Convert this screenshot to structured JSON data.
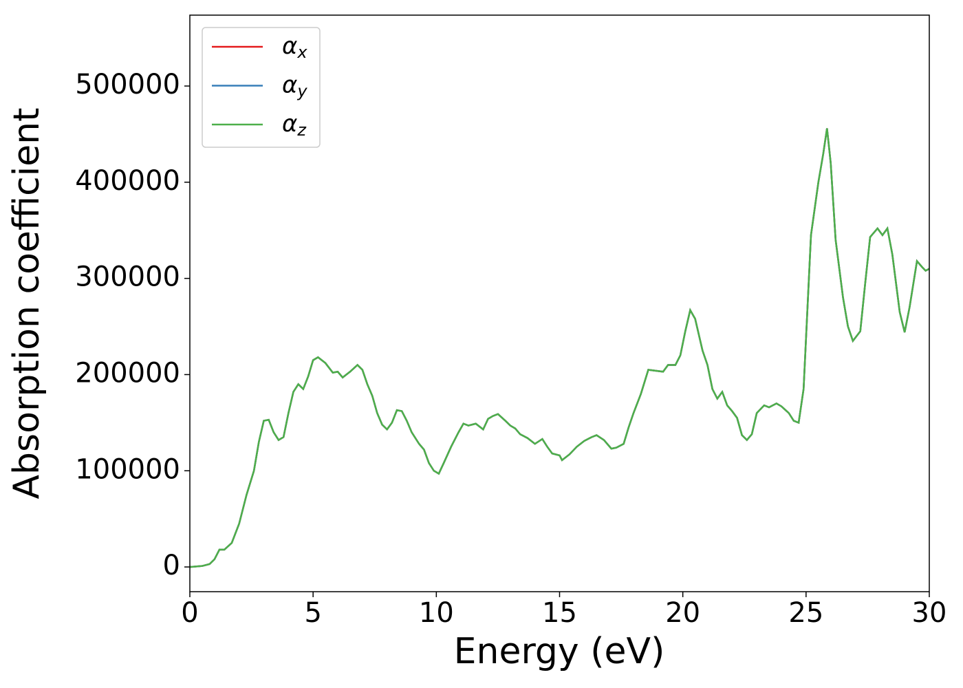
{
  "chart_data": {
    "type": "line",
    "xlabel": "Energy (eV)",
    "ylabel": "Absorption coefficient",
    "x": [
      0,
      0.5,
      0.8,
      1.0,
      1.2,
      1.4,
      1.7,
      2.0,
      2.3,
      2.6,
      2.8,
      3.0,
      3.2,
      3.4,
      3.6,
      3.8,
      4.0,
      4.2,
      4.4,
      4.6,
      4.8,
      5.0,
      5.2,
      5.5,
      5.8,
      6.0,
      6.2,
      6.5,
      6.8,
      7.0,
      7.2,
      7.4,
      7.6,
      7.8,
      8.0,
      8.2,
      8.4,
      8.6,
      8.8,
      9.0,
      9.3,
      9.5,
      9.7,
      9.9,
      10.1,
      10.3,
      10.6,
      10.9,
      11.1,
      11.3,
      11.6,
      11.9,
      12.1,
      12.3,
      12.5,
      12.8,
      13.0,
      13.2,
      13.4,
      13.7,
      14.0,
      14.3,
      14.5,
      14.7,
      15.0,
      15.1,
      15.4,
      15.7,
      16.0,
      16.3,
      16.5,
      16.8,
      17.1,
      17.3,
      17.6,
      17.8,
      18.0,
      18.3,
      18.6,
      18.9,
      19.2,
      19.4,
      19.7,
      19.9,
      20.1,
      20.3,
      20.5,
      20.8,
      21.0,
      21.2,
      21.4,
      21.6,
      21.8,
      22.0,
      22.2,
      22.4,
      22.6,
      22.8,
      23.0,
      23.3,
      23.5,
      23.8,
      24.0,
      24.3,
      24.5,
      24.7,
      24.9,
      25.2,
      25.5,
      25.7,
      25.85,
      26.0,
      26.2,
      26.5,
      26.7,
      26.9,
      27.2,
      27.4,
      27.6,
      27.9,
      28.1,
      28.3,
      28.5,
      28.8,
      29.0,
      29.2,
      29.5,
      29.7,
      29.85,
      30.0
    ],
    "series": [
      {
        "name": "αx",
        "color": "#e41a1c",
        "values": [
          0,
          1000,
          3000,
          8000,
          18000,
          18000,
          25000,
          45000,
          75000,
          100000,
          130000,
          152000,
          153000,
          140000,
          132000,
          135000,
          160000,
          182000,
          190000,
          185000,
          198000,
          215000,
          218000,
          212000,
          202000,
          203000,
          197000,
          203000,
          210000,
          205000,
          190000,
          178000,
          160000,
          148000,
          143000,
          150000,
          163000,
          162000,
          152000,
          140000,
          128000,
          122000,
          108000,
          100000,
          97000,
          108000,
          125000,
          140000,
          149000,
          147000,
          149000,
          143000,
          154000,
          157000,
          159000,
          152000,
          147000,
          144000,
          138000,
          134000,
          128000,
          133000,
          125000,
          118000,
          116000,
          111000,
          117000,
          125000,
          131000,
          135000,
          137000,
          132000,
          123000,
          124000,
          128000,
          145000,
          160000,
          180000,
          205000,
          204000,
          203000,
          210000,
          210000,
          220000,
          245000,
          267000,
          258000,
          225000,
          210000,
          185000,
          175000,
          182000,
          168000,
          162000,
          155000,
          137000,
          132000,
          138000,
          160000,
          168000,
          166000,
          170000,
          167000,
          160000,
          152000,
          150000,
          185000,
          345000,
          400000,
          430000,
          456000,
          420000,
          340000,
          280000,
          250000,
          235000,
          245000,
          295000,
          343000,
          352000,
          345000,
          352000,
          325000,
          265000,
          244000,
          270000,
          318000,
          312000,
          308000,
          310000
        ]
      },
      {
        "name": "αy",
        "color": "#377eb8",
        "values": [
          0,
          1000,
          3000,
          8000,
          18000,
          18000,
          25000,
          45000,
          75000,
          100000,
          130000,
          152000,
          153000,
          140000,
          132000,
          135000,
          160000,
          182000,
          190000,
          185000,
          198000,
          215000,
          218000,
          212000,
          202000,
          203000,
          197000,
          203000,
          210000,
          205000,
          190000,
          178000,
          160000,
          148000,
          143000,
          150000,
          163000,
          162000,
          152000,
          140000,
          128000,
          122000,
          108000,
          100000,
          97000,
          108000,
          125000,
          140000,
          149000,
          147000,
          149000,
          143000,
          154000,
          157000,
          159000,
          152000,
          147000,
          144000,
          138000,
          134000,
          128000,
          133000,
          125000,
          118000,
          116000,
          111000,
          117000,
          125000,
          131000,
          135000,
          137000,
          132000,
          123000,
          124000,
          128000,
          145000,
          160000,
          180000,
          205000,
          204000,
          203000,
          210000,
          210000,
          220000,
          245000,
          267000,
          258000,
          225000,
          210000,
          185000,
          175000,
          182000,
          168000,
          162000,
          155000,
          137000,
          132000,
          138000,
          160000,
          168000,
          166000,
          170000,
          167000,
          160000,
          152000,
          150000,
          185000,
          345000,
          400000,
          430000,
          456000,
          420000,
          340000,
          280000,
          250000,
          235000,
          245000,
          295000,
          343000,
          352000,
          345000,
          352000,
          325000,
          265000,
          244000,
          270000,
          318000,
          312000,
          308000,
          310000
        ]
      },
      {
        "name": "αz",
        "color": "#4daf4a",
        "values": [
          0,
          1000,
          3000,
          8000,
          18000,
          18000,
          25000,
          45000,
          75000,
          100000,
          130000,
          152000,
          153000,
          140000,
          132000,
          135000,
          160000,
          182000,
          190000,
          185000,
          198000,
          215000,
          218000,
          212000,
          202000,
          203000,
          197000,
          203000,
          210000,
          205000,
          190000,
          178000,
          160000,
          148000,
          143000,
          150000,
          163000,
          162000,
          152000,
          140000,
          128000,
          122000,
          108000,
          100000,
          97000,
          108000,
          125000,
          140000,
          149000,
          147000,
          149000,
          143000,
          154000,
          157000,
          159000,
          152000,
          147000,
          144000,
          138000,
          134000,
          128000,
          133000,
          125000,
          118000,
          116000,
          111000,
          117000,
          125000,
          131000,
          135000,
          137000,
          132000,
          123000,
          124000,
          128000,
          145000,
          160000,
          180000,
          205000,
          204000,
          203000,
          210000,
          210000,
          220000,
          245000,
          267000,
          258000,
          225000,
          210000,
          185000,
          175000,
          182000,
          168000,
          162000,
          155000,
          137000,
          132000,
          138000,
          160000,
          168000,
          166000,
          170000,
          167000,
          160000,
          152000,
          150000,
          185000,
          345000,
          400000,
          430000,
          456000,
          420000,
          340000,
          280000,
          250000,
          235000,
          245000,
          295000,
          343000,
          352000,
          345000,
          352000,
          325000,
          265000,
          244000,
          270000,
          318000,
          312000,
          308000,
          310000
        ]
      }
    ],
    "xlim": [
      0,
      30
    ],
    "xticks": [
      0,
      5,
      10,
      15,
      20,
      25,
      30
    ],
    "ylim": [
      -25700,
      573700
    ],
    "yticks": [
      0,
      100000,
      200000,
      300000,
      400000,
      500000
    ],
    "grid": false,
    "legend": "upper left"
  }
}
